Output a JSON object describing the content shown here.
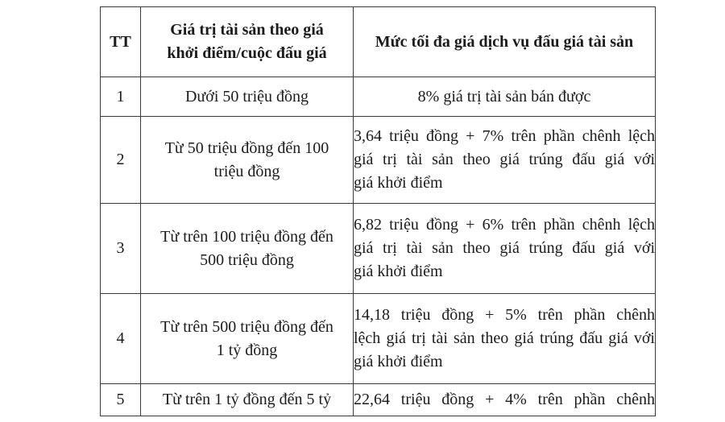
{
  "page": {
    "background": "#ffffff",
    "text_color": "#1b1b1b",
    "border_color": "#3a3a3a"
  },
  "table": {
    "title_semantic": "auction-service-fee-table",
    "header": {
      "tt": "TT",
      "asset_value_lines": [
        "Giá trị tài sản theo giá",
        "khởi điểm/cuộc đấu giá"
      ],
      "max_fee": "Mức tối đa giá dịch vụ đấu giá tài sản"
    },
    "rows": [
      {
        "tt": "1",
        "asset_value_lines": [
          "Dưới 50 triệu đồng"
        ],
        "fee_lines": [
          "8% giá trị tài sản bán được"
        ]
      },
      {
        "tt": "2",
        "asset_value_lines": [
          "Từ 50 triệu đồng đến 100",
          "triệu đồng"
        ],
        "fee_lines": [
          "3,64 triệu đồng + 7% trên phần chênh lệch",
          "giá trị tài sản theo giá trúng đấu giá với",
          "giá khởi điểm"
        ]
      },
      {
        "tt": "3",
        "asset_value_lines": [
          "Từ trên 100 triệu đồng đến",
          "500 triệu đồng"
        ],
        "fee_lines": [
          "6,82 triệu đồng + 6% trên phần chênh lệch",
          "giá trị tài sản theo giá trúng đấu giá với",
          "giá khởi điểm"
        ]
      },
      {
        "tt": "4",
        "asset_value_lines": [
          "Từ trên 500 triệu đồng đến",
          "1 tỷ đồng"
        ],
        "fee_lines": [
          "14,18 triệu đồng + 5% trên phần chênh",
          "lệch giá trị tài sản theo giá trúng đấu giá với",
          "giá khởi điểm"
        ]
      },
      {
        "tt": "5",
        "asset_value_lines": [
          "Từ trên 1 tỷ đồng đến 5 tỷ"
        ],
        "fee_lines": [
          "22,64 triệu đồng + 4% trên phần chênh"
        ]
      }
    ]
  }
}
